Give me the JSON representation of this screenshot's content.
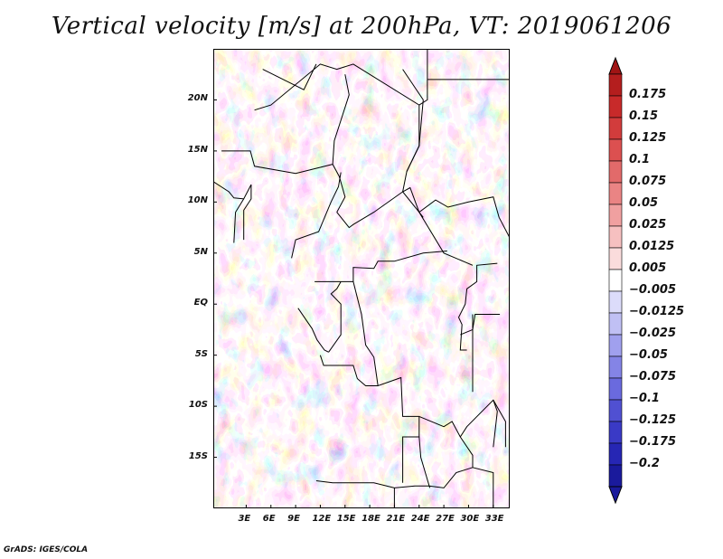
{
  "title": "Vertical velocity [m/s] at 200hPa, VT: 2019061206",
  "footer": "GrADS: IGES/COLA",
  "map": {
    "lon_range": [
      -1,
      35
    ],
    "lat_range": [
      -20,
      25
    ],
    "lat_ticks": [
      {
        "value": 20,
        "label": "20N"
      },
      {
        "value": 15,
        "label": "15N"
      },
      {
        "value": 10,
        "label": "10N"
      },
      {
        "value": 5,
        "label": "5N"
      },
      {
        "value": 0,
        "label": "EQ"
      },
      {
        "value": -5,
        "label": "5S"
      },
      {
        "value": -10,
        "label": "10S"
      },
      {
        "value": -15,
        "label": "15S"
      }
    ],
    "lon_ticks": [
      {
        "value": 3,
        "label": "3E"
      },
      {
        "value": 6,
        "label": "6E"
      },
      {
        "value": 9,
        "label": "9E"
      },
      {
        "value": 12,
        "label": "12E"
      },
      {
        "value": 15,
        "label": "15E"
      },
      {
        "value": 18,
        "label": "18E"
      },
      {
        "value": 21,
        "label": "21E"
      },
      {
        "value": 24,
        "label": "24E"
      },
      {
        "value": 27,
        "label": "27E"
      },
      {
        "value": 30,
        "label": "30E"
      },
      {
        "value": 33,
        "label": "33E"
      }
    ]
  },
  "colorbar": {
    "levels": [
      {
        "label": "0.175",
        "color": "#b41e1e"
      },
      {
        "label": "0.15",
        "color": "#c82a2a"
      },
      {
        "label": "0.125",
        "color": "#d23c3c"
      },
      {
        "label": "0.1",
        "color": "#dc5050"
      },
      {
        "label": "0.075",
        "color": "#e26a6a"
      },
      {
        "label": "0.05",
        "color": "#ea8484"
      },
      {
        "label": "0.025",
        "color": "#f0a0a0"
      },
      {
        "label": "0.0125",
        "color": "#f6c0c0"
      },
      {
        "label": "0.005",
        "color": "#fadcdc"
      },
      {
        "label": "−0.005",
        "color": "#ffffff"
      },
      {
        "label": "−0.0125",
        "color": "#dcdcfa"
      },
      {
        "label": "−0.025",
        "color": "#c0c0f4"
      },
      {
        "label": "−0.05",
        "color": "#a0a0ee"
      },
      {
        "label": "−0.075",
        "color": "#8484e6"
      },
      {
        "label": "−0.1",
        "color": "#6a6ade"
      },
      {
        "label": "−0.125",
        "color": "#5050d2"
      },
      {
        "label": "−0.175",
        "color": "#3a3ac6"
      },
      {
        "label": "−0.2",
        "color": "#2626b4"
      }
    ],
    "top_arrow_color": "#a01414",
    "bottom_arrow_color": "#1a1a9c"
  },
  "palette": {
    "border": "#000000",
    "frame": "#000000"
  }
}
